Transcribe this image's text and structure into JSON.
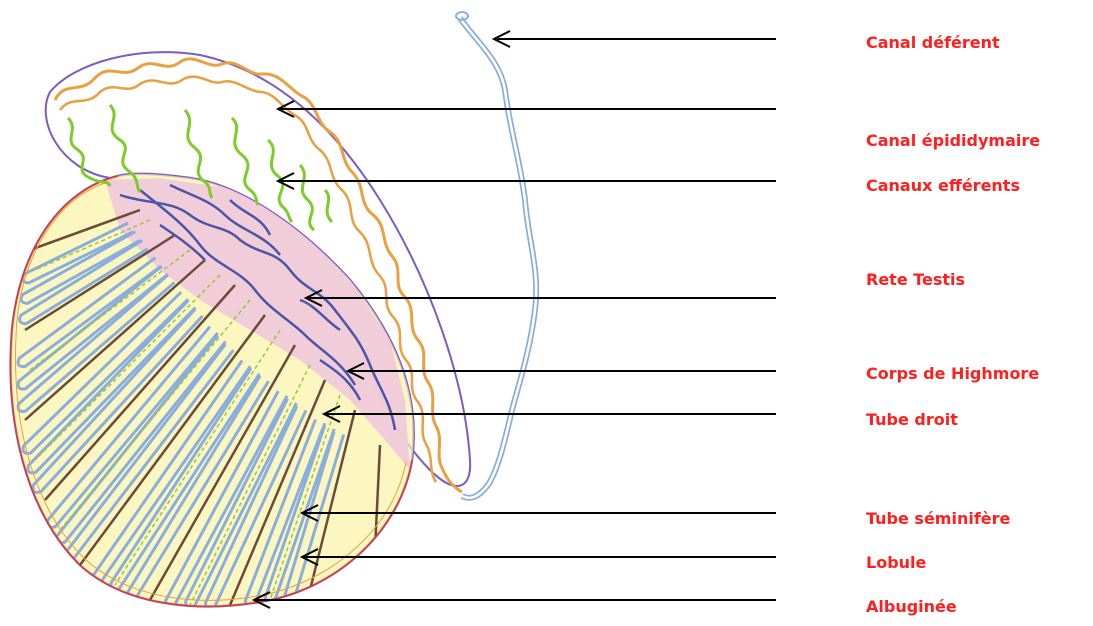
{
  "labels": [
    {
      "id": "canal-deferent",
      "text": "Canal déférent"
    },
    {
      "id": "canal-epididymaire",
      "text": "Canal épididymaire"
    },
    {
      "id": "canaux-efferents",
      "text": "Canaux efférents"
    },
    {
      "id": "rete-testis",
      "text": "Rete Testis"
    },
    {
      "id": "corps-de-highmore",
      "text": "Corps de Highmore"
    },
    {
      "id": "tube-droit",
      "text": "Tube droit"
    },
    {
      "id": "tube-seminifere",
      "text": "Tube séminifère"
    },
    {
      "id": "lobule",
      "text": "Lobule"
    },
    {
      "id": "albuginee",
      "text": "Albuginée"
    }
  ],
  "colors": {
    "label_text": "#ff1f1f",
    "arrow": "#000000",
    "capsule": "#7b5bc4",
    "epididymal_duct": "#e8a040",
    "efferent_ducts": "#7ccc2a",
    "seminiferous_tubes": "#8aaedc",
    "rete_testis": "#4a55a8",
    "lobule_fill": "#fbf3a6",
    "septa": "#6b4a3a",
    "albuginea_edge": "#e23a2a",
    "mediastinum_fill": "#efc8dc"
  }
}
